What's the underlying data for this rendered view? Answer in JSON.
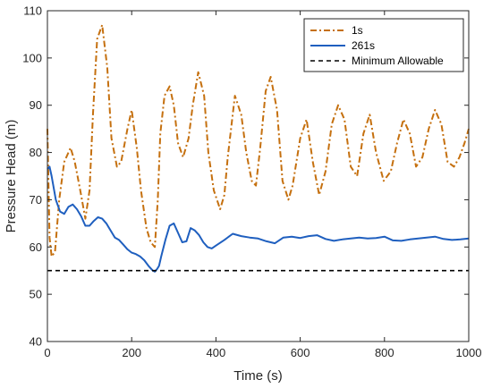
{
  "chart_data": {
    "type": "line",
    "xlabel": "Time (s)",
    "ylabel": "Pressure Head (m)",
    "xlim": [
      0,
      1000
    ],
    "ylim": [
      40,
      110
    ],
    "xticks": [
      "0",
      "200",
      "400",
      "600",
      "800",
      "1000"
    ],
    "yticks": [
      "40",
      "50",
      "60",
      "70",
      "80",
      "90",
      "100",
      "110"
    ],
    "grid": false,
    "legend_position": "top-right",
    "series": [
      {
        "name": "1s",
        "color": "#C5700F",
        "style": "dashdot",
        "x": [
          0,
          5,
          10,
          18,
          28,
          40,
          55,
          65,
          78,
          90,
          100,
          108,
          118,
          130,
          142,
          152,
          165,
          175,
          190,
          200,
          212,
          222,
          235,
          245,
          255,
          262,
          268,
          278,
          290,
          300,
          310,
          322,
          335,
          345,
          358,
          372,
          382,
          395,
          410,
          420,
          428,
          445,
          460,
          472,
          485,
          495,
          505,
          518,
          530,
          545,
          558,
          572,
          582,
          600,
          615,
          630,
          645,
          660,
          675,
          690,
          705,
          720,
          735,
          750,
          765,
          780,
          798,
          815,
          830,
          845,
          860,
          875,
          890,
          905,
          920,
          935,
          950,
          965,
          978,
          990,
          1000
        ],
        "y": [
          85,
          62,
          58,
          59,
          70,
          78,
          81,
          78,
          72,
          66,
          72,
          88,
          104,
          107,
          98,
          83,
          77,
          78,
          85,
          89,
          81,
          72,
          64,
          61,
          60,
          70,
          84,
          92,
          94,
          90,
          82,
          79,
          83,
          90,
          97,
          92,
          80,
          72,
          68,
          71,
          79,
          92,
          88,
          80,
          74,
          73,
          81,
          93,
          96,
          89,
          74,
          70,
          73,
          83,
          87,
          78,
          71,
          76,
          86,
          90,
          87,
          77,
          75,
          84,
          88,
          80,
          74,
          76,
          82,
          87,
          84,
          77,
          79,
          85,
          89,
          86,
          78,
          77,
          79,
          82,
          85
        ]
      },
      {
        "name": "261s",
        "color": "#1F5FBF",
        "style": "solid",
        "x": [
          0,
          5,
          10,
          20,
          30,
          40,
          50,
          60,
          70,
          80,
          90,
          100,
          110,
          120,
          130,
          140,
          150,
          160,
          170,
          180,
          190,
          200,
          210,
          220,
          230,
          240,
          250,
          255,
          260,
          265,
          270,
          280,
          290,
          300,
          310,
          320,
          330,
          340,
          350,
          360,
          370,
          380,
          390,
          400,
          420,
          440,
          460,
          480,
          500,
          520,
          540,
          560,
          580,
          600,
          620,
          640,
          660,
          680,
          700,
          720,
          740,
          760,
          780,
          800,
          820,
          840,
          860,
          880,
          900,
          920,
          940,
          960,
          980,
          1000
        ],
        "y": [
          76.5,
          77,
          75,
          70,
          67.5,
          67,
          68.5,
          69,
          68,
          66.5,
          64.5,
          64.5,
          65.5,
          66.3,
          66,
          65,
          63.5,
          62,
          61.5,
          60.5,
          59.5,
          58.8,
          58.5,
          58,
          57.2,
          56,
          55,
          54.8,
          55.3,
          56,
          58,
          61.5,
          64.5,
          65,
          63,
          61,
          61.2,
          64,
          63.5,
          62.5,
          61,
          60,
          59.7,
          60.3,
          61.5,
          62.8,
          62.3,
          62,
          61.8,
          61.2,
          60.8,
          62,
          62.2,
          61.9,
          62.3,
          62.5,
          61.7,
          61.3,
          61.6,
          61.8,
          62,
          61.8,
          61.9,
          62.2,
          61.4,
          61.3,
          61.6,
          61.8,
          62,
          62.2,
          61.7,
          61.5,
          61.6,
          61.8
        ]
      },
      {
        "name": "Minimum Allowable",
        "color": "#000000",
        "style": "dashed",
        "x": [
          0,
          1000
        ],
        "y": [
          55,
          55
        ]
      }
    ]
  }
}
